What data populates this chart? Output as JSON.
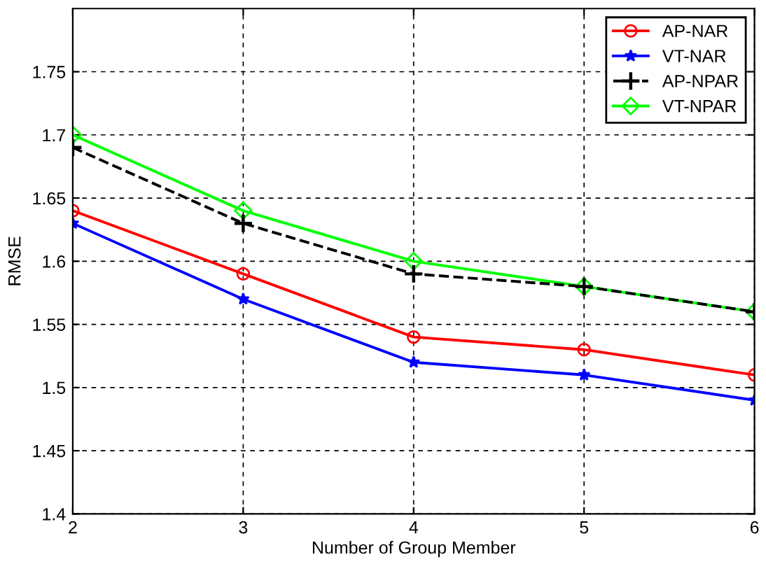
{
  "chart_data": {
    "type": "line",
    "xlabel": "Number of Group Member",
    "ylabel": "RMSE",
    "x": [
      2,
      3,
      4,
      5,
      6
    ],
    "series": [
      {
        "name": "AP-NAR",
        "color": "#ff0000",
        "marker": "circle",
        "line_style": "solid",
        "values": [
          1.64,
          1.59,
          1.54,
          1.53,
          1.51
        ]
      },
      {
        "name": "VT-NAR",
        "color": "#0000ff",
        "marker": "star",
        "line_style": "solid",
        "values": [
          1.63,
          1.57,
          1.52,
          1.51,
          1.49
        ]
      },
      {
        "name": "AP-NPAR",
        "color": "#000000",
        "marker": "cross",
        "line_style": "dashed",
        "values": [
          1.69,
          1.63,
          1.59,
          1.58,
          1.56
        ]
      },
      {
        "name": "VT-NPAR",
        "color": "#00ff00",
        "marker": "diamond",
        "line_style": "solid",
        "values": [
          1.7,
          1.64,
          1.6,
          1.58,
          1.56
        ]
      }
    ],
    "xlim": [
      2,
      6
    ],
    "ylim": [
      1.4,
      1.8
    ],
    "xticks": [
      2,
      3,
      4,
      5,
      6
    ],
    "yticks": [
      1.4,
      1.45,
      1.5,
      1.55,
      1.6,
      1.65,
      1.7,
      1.75
    ],
    "grid": true,
    "legend": "top right"
  }
}
